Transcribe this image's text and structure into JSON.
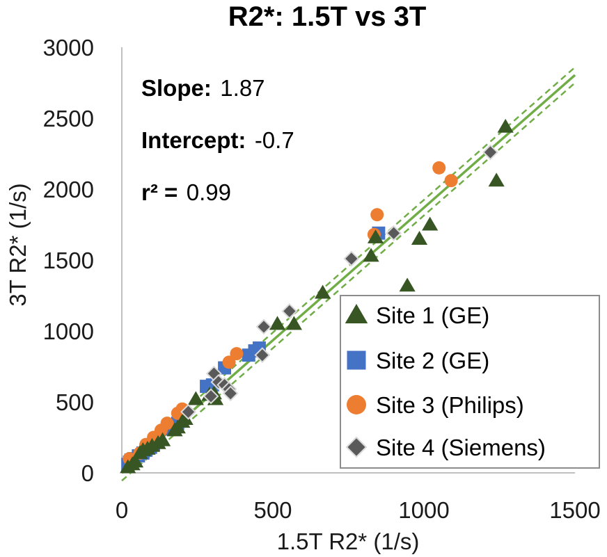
{
  "chart_data": {
    "type": "scatter",
    "title": "R2*: 1.5T vs 3T",
    "xlabel": "1.5T R2* (1/s)",
    "ylabel": "3T R2* (1/s)",
    "xlim": [
      0,
      1500
    ],
    "ylim": [
      0,
      3000
    ],
    "xticks": [
      "0",
      "500",
      "1000",
      "1500"
    ],
    "yticks": [
      "0",
      "500",
      "1000",
      "1500",
      "2000",
      "2500",
      "3000"
    ],
    "xtick_values": [
      0,
      500,
      1000,
      1500
    ],
    "ytick_values": [
      0,
      500,
      1000,
      1500,
      2000,
      2500,
      3000
    ],
    "stats": {
      "slope_label": "Slope:",
      "slope_value": "1.87",
      "intercept_label": "Intercept:",
      "intercept_value": "-0.7",
      "r2_label": "r² =",
      "r2_value": "0.99"
    },
    "fit": {
      "slope": 1.87,
      "intercept": -0.7,
      "x_range": [
        0,
        1500
      ],
      "ci_offset": 55
    },
    "colors": {
      "site1": "#375623",
      "site2": "#4472c4",
      "site3": "#ed7d31",
      "site4": "#595959",
      "fit": "#70ad47",
      "axis": "#bfbfbf",
      "legend_border": "#8c8c8c"
    },
    "legend": [
      "Site 1 (GE)",
      "Site 2 (GE)",
      "Site 3 (Philips)",
      "Site 4 (Siemens)"
    ],
    "series": [
      {
        "name": "Site 1 (GE)",
        "marker": "triangle",
        "x": [
          20,
          35,
          45,
          60,
          70,
          85,
          100,
          120,
          135,
          175,
          185,
          200,
          210,
          245,
          290,
          305,
          310,
          515,
          570,
          665,
          825,
          840,
          945,
          985,
          1020,
          1240,
          1270
        ],
        "y": [
          40,
          60,
          80,
          140,
          160,
          170,
          190,
          210,
          230,
          300,
          320,
          360,
          380,
          520,
          550,
          560,
          520,
          1050,
          1050,
          1270,
          1530,
          1660,
          1320,
          1650,
          1750,
          2060,
          2440
        ]
      },
      {
        "name": "Site 2 (GE)",
        "marker": "square",
        "x": [
          20,
          25,
          30,
          40,
          55,
          70,
          80,
          95,
          105,
          160,
          175,
          185,
          280,
          300,
          340,
          420,
          440,
          455,
          850
        ],
        "y": [
          60,
          75,
          90,
          100,
          120,
          140,
          160,
          180,
          200,
          310,
          330,
          350,
          610,
          620,
          740,
          830,
          860,
          880,
          1690
        ]
      },
      {
        "name": "Site 3 (Philips)",
        "marker": "circle",
        "x": [
          25,
          60,
          80,
          105,
          130,
          150,
          185,
          200,
          355,
          380,
          835,
          845,
          1050,
          1090
        ],
        "y": [
          100,
          140,
          200,
          250,
          300,
          350,
          420,
          450,
          780,
          840,
          1680,
          1820,
          2150,
          2060
        ]
      },
      {
        "name": "Site 4 (Siemens)",
        "marker": "diamond",
        "x": [
          220,
          295,
          305,
          320,
          340,
          355,
          360,
          465,
          470,
          555,
          760,
          900,
          1220
        ],
        "y": [
          430,
          540,
          700,
          640,
          620,
          590,
          560,
          830,
          1030,
          1140,
          1510,
          1690,
          2260
        ]
      }
    ]
  }
}
